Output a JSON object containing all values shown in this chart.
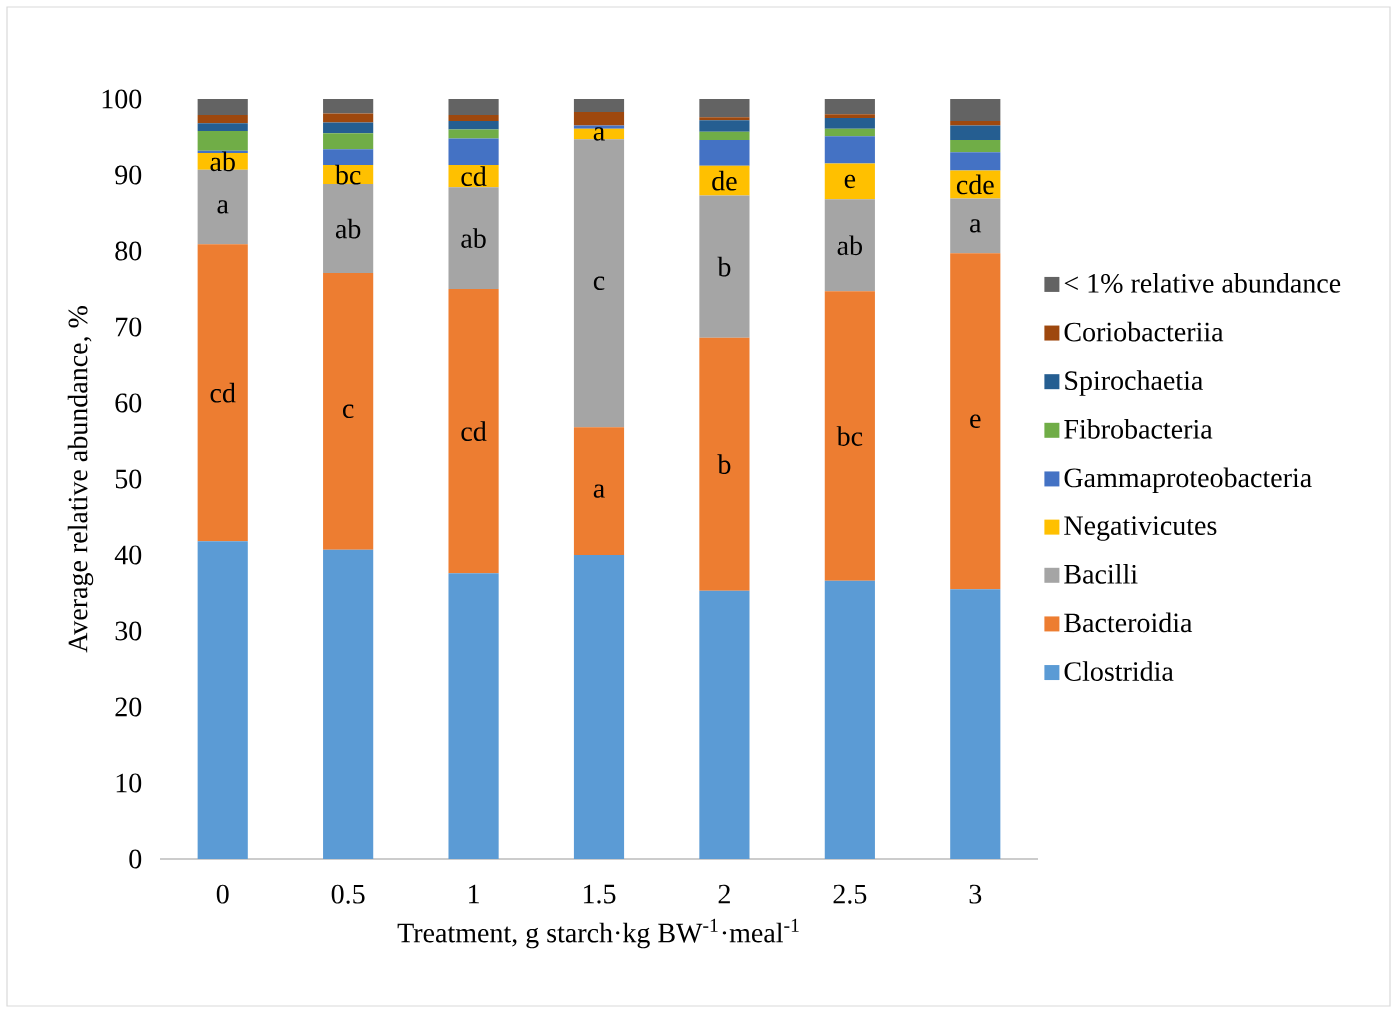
{
  "chart_data": {
    "type": "bar",
    "stacked": true,
    "xlabel": "Treatment, g starch·kg BW$^{-1}$·meal$^{-1}$",
    "ylabel": "Average relative abundance, %",
    "categories": [
      "0",
      "0.5",
      "1",
      "1.5",
      "2",
      "2.5",
      "3"
    ],
    "ylim": [
      0,
      100
    ],
    "yticks": [
      0,
      10,
      20,
      30,
      40,
      50,
      60,
      70,
      80,
      90,
      100
    ],
    "legend": "right",
    "grid": false,
    "series": [
      {
        "name": "Clostridia",
        "color": "#5b9bd5",
        "values": [
          41.8,
          40.7,
          37.6,
          40.0,
          35.3,
          36.6,
          35.5
        ]
      },
      {
        "name": "Bacteroidia",
        "color": "#ed7d31",
        "values": [
          39.1,
          36.4,
          37.4,
          16.8,
          33.3,
          38.1,
          44.2
        ],
        "value_labels": [
          "cd",
          "c",
          "cd",
          "a",
          "b",
          "bc",
          "e"
        ]
      },
      {
        "name": "Bacilli",
        "color": "#a5a5a5",
        "values": [
          9.8,
          11.7,
          13.4,
          37.9,
          18.7,
          12.1,
          7.2
        ],
        "value_labels": [
          "a",
          "ab",
          "ab",
          "c",
          "b",
          "ab",
          "a"
        ]
      },
      {
        "name": "Negativicutes",
        "color": "#ffc000",
        "values": [
          2.2,
          2.5,
          2.9,
          1.4,
          3.9,
          4.7,
          3.7
        ],
        "value_labels": [
          "ab",
          "bc",
          "cd",
          "a",
          "de",
          "e",
          "cde"
        ]
      },
      {
        "name": "Gammaproteobacteria",
        "color": "#4472c4",
        "values": [
          0.3,
          2.1,
          3.5,
          0.4,
          3.4,
          3.6,
          2.4
        ]
      },
      {
        "name": "Fibrobacteria",
        "color": "#70ad47",
        "values": [
          2.6,
          2.1,
          1.2,
          0.0,
          1.1,
          1.0,
          1.6
        ]
      },
      {
        "name": "Spirochaetia",
        "color": "#255e91",
        "values": [
          1.0,
          1.4,
          1.1,
          0.0,
          1.5,
          1.4,
          1.9
        ]
      },
      {
        "name": "Coriobacteriia",
        "color": "#9e480e",
        "values": [
          1.1,
          1.2,
          0.8,
          1.8,
          0.4,
          0.5,
          0.6
        ]
      },
      {
        "name": "< 1% relative abundance",
        "color": "#636363",
        "values": [
          2.1,
          1.9,
          2.1,
          1.7,
          2.4,
          2.0,
          2.9
        ]
      }
    ]
  }
}
